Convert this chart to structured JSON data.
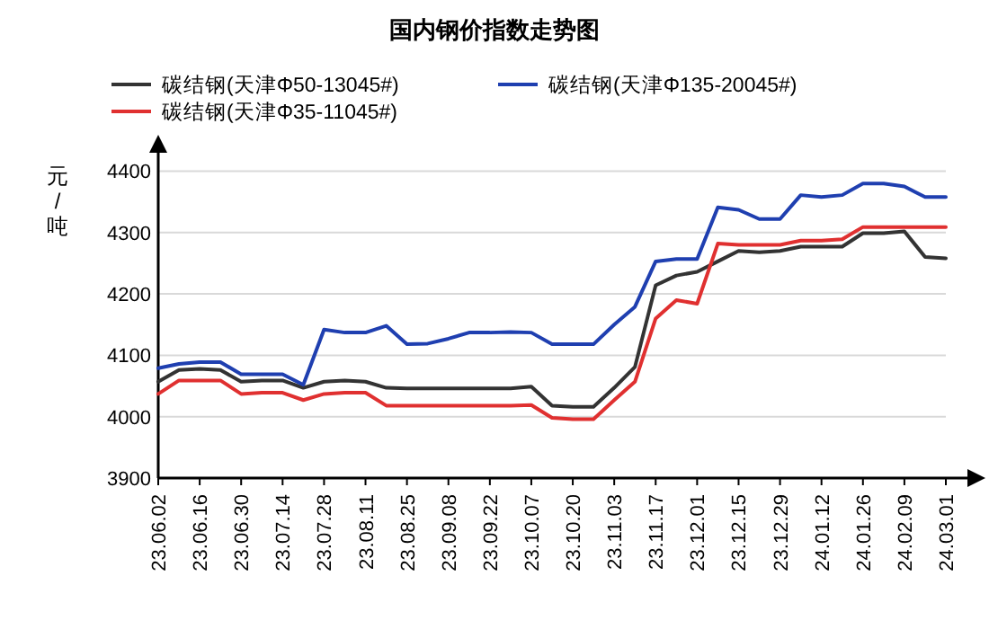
{
  "chart_data": {
    "type": "line",
    "title": "国内钢价指数走势图",
    "ylabel": "元/吨",
    "categories": [
      "23.06.02",
      null,
      "23.06.16",
      null,
      "23.06.30",
      null,
      "23.07.14",
      null,
      "23.07.28",
      null,
      "23.08.11",
      null,
      "23.08.25",
      null,
      "23.09.08",
      null,
      "23.09.22",
      null,
      "23.10.07",
      null,
      "23.10.20",
      null,
      "23.11.03",
      null,
      "23.11.17",
      null,
      "23.12.01",
      null,
      "23.12.15",
      null,
      "23.12.29",
      null,
      "24.01.12",
      null,
      "24.01.26",
      null,
      "24.02.09",
      null,
      "24.03.01"
    ],
    "series": [
      {
        "name": "碳结钢(天津Φ50-13045#)",
        "color": "#333333",
        "values": [
          4057,
          4076,
          4078,
          4076,
          4057,
          4059,
          4059,
          4047,
          4057,
          4059,
          4057,
          4047,
          4046,
          4046,
          4046,
          4046,
          4046,
          4046,
          4049,
          4018,
          4016,
          4016,
          4047,
          4081,
          4214,
          4230,
          4236,
          4253,
          4270,
          4268,
          4270,
          4277,
          4277,
          4277,
          4299,
          4299,
          4302,
          4260,
          4258
        ]
      },
      {
        "name": "碳结钢(天津Φ135-20045#)",
        "color": "#1f3fb0",
        "values": [
          4079,
          4086,
          4089,
          4089,
          4069,
          4069,
          4069,
          4052,
          4142,
          4137,
          4137,
          4148,
          4118,
          4119,
          4127,
          4137,
          4137,
          4138,
          4137,
          4118,
          4118,
          4118,
          4150,
          4179,
          4253,
          4257,
          4257,
          4341,
          4337,
          4322,
          4322,
          4361,
          4358,
          4361,
          4380,
          4380,
          4375,
          4358,
          4358
        ]
      },
      {
        "name": "碳结钢(天津Φ35-11045#)",
        "color": "#e03030",
        "values": [
          4037,
          4059,
          4059,
          4059,
          4037,
          4039,
          4039,
          4027,
          4037,
          4039,
          4039,
          4018,
          4018,
          4018,
          4018,
          4018,
          4018,
          4018,
          4019,
          3998,
          3996,
          3996,
          4027,
          4057,
          4160,
          4190,
          4184,
          4282,
          4280,
          4280,
          4280,
          4287,
          4287,
          4289,
          4309,
          4309,
          4309,
          4309,
          4309
        ]
      }
    ],
    "ylim": [
      3900,
      4430
    ],
    "yticks": [
      3900,
      4000,
      4100,
      4200,
      4300,
      4400
    ],
    "grid": "y",
    "legend": "top",
    "marker": "none",
    "line_style": "solid"
  }
}
